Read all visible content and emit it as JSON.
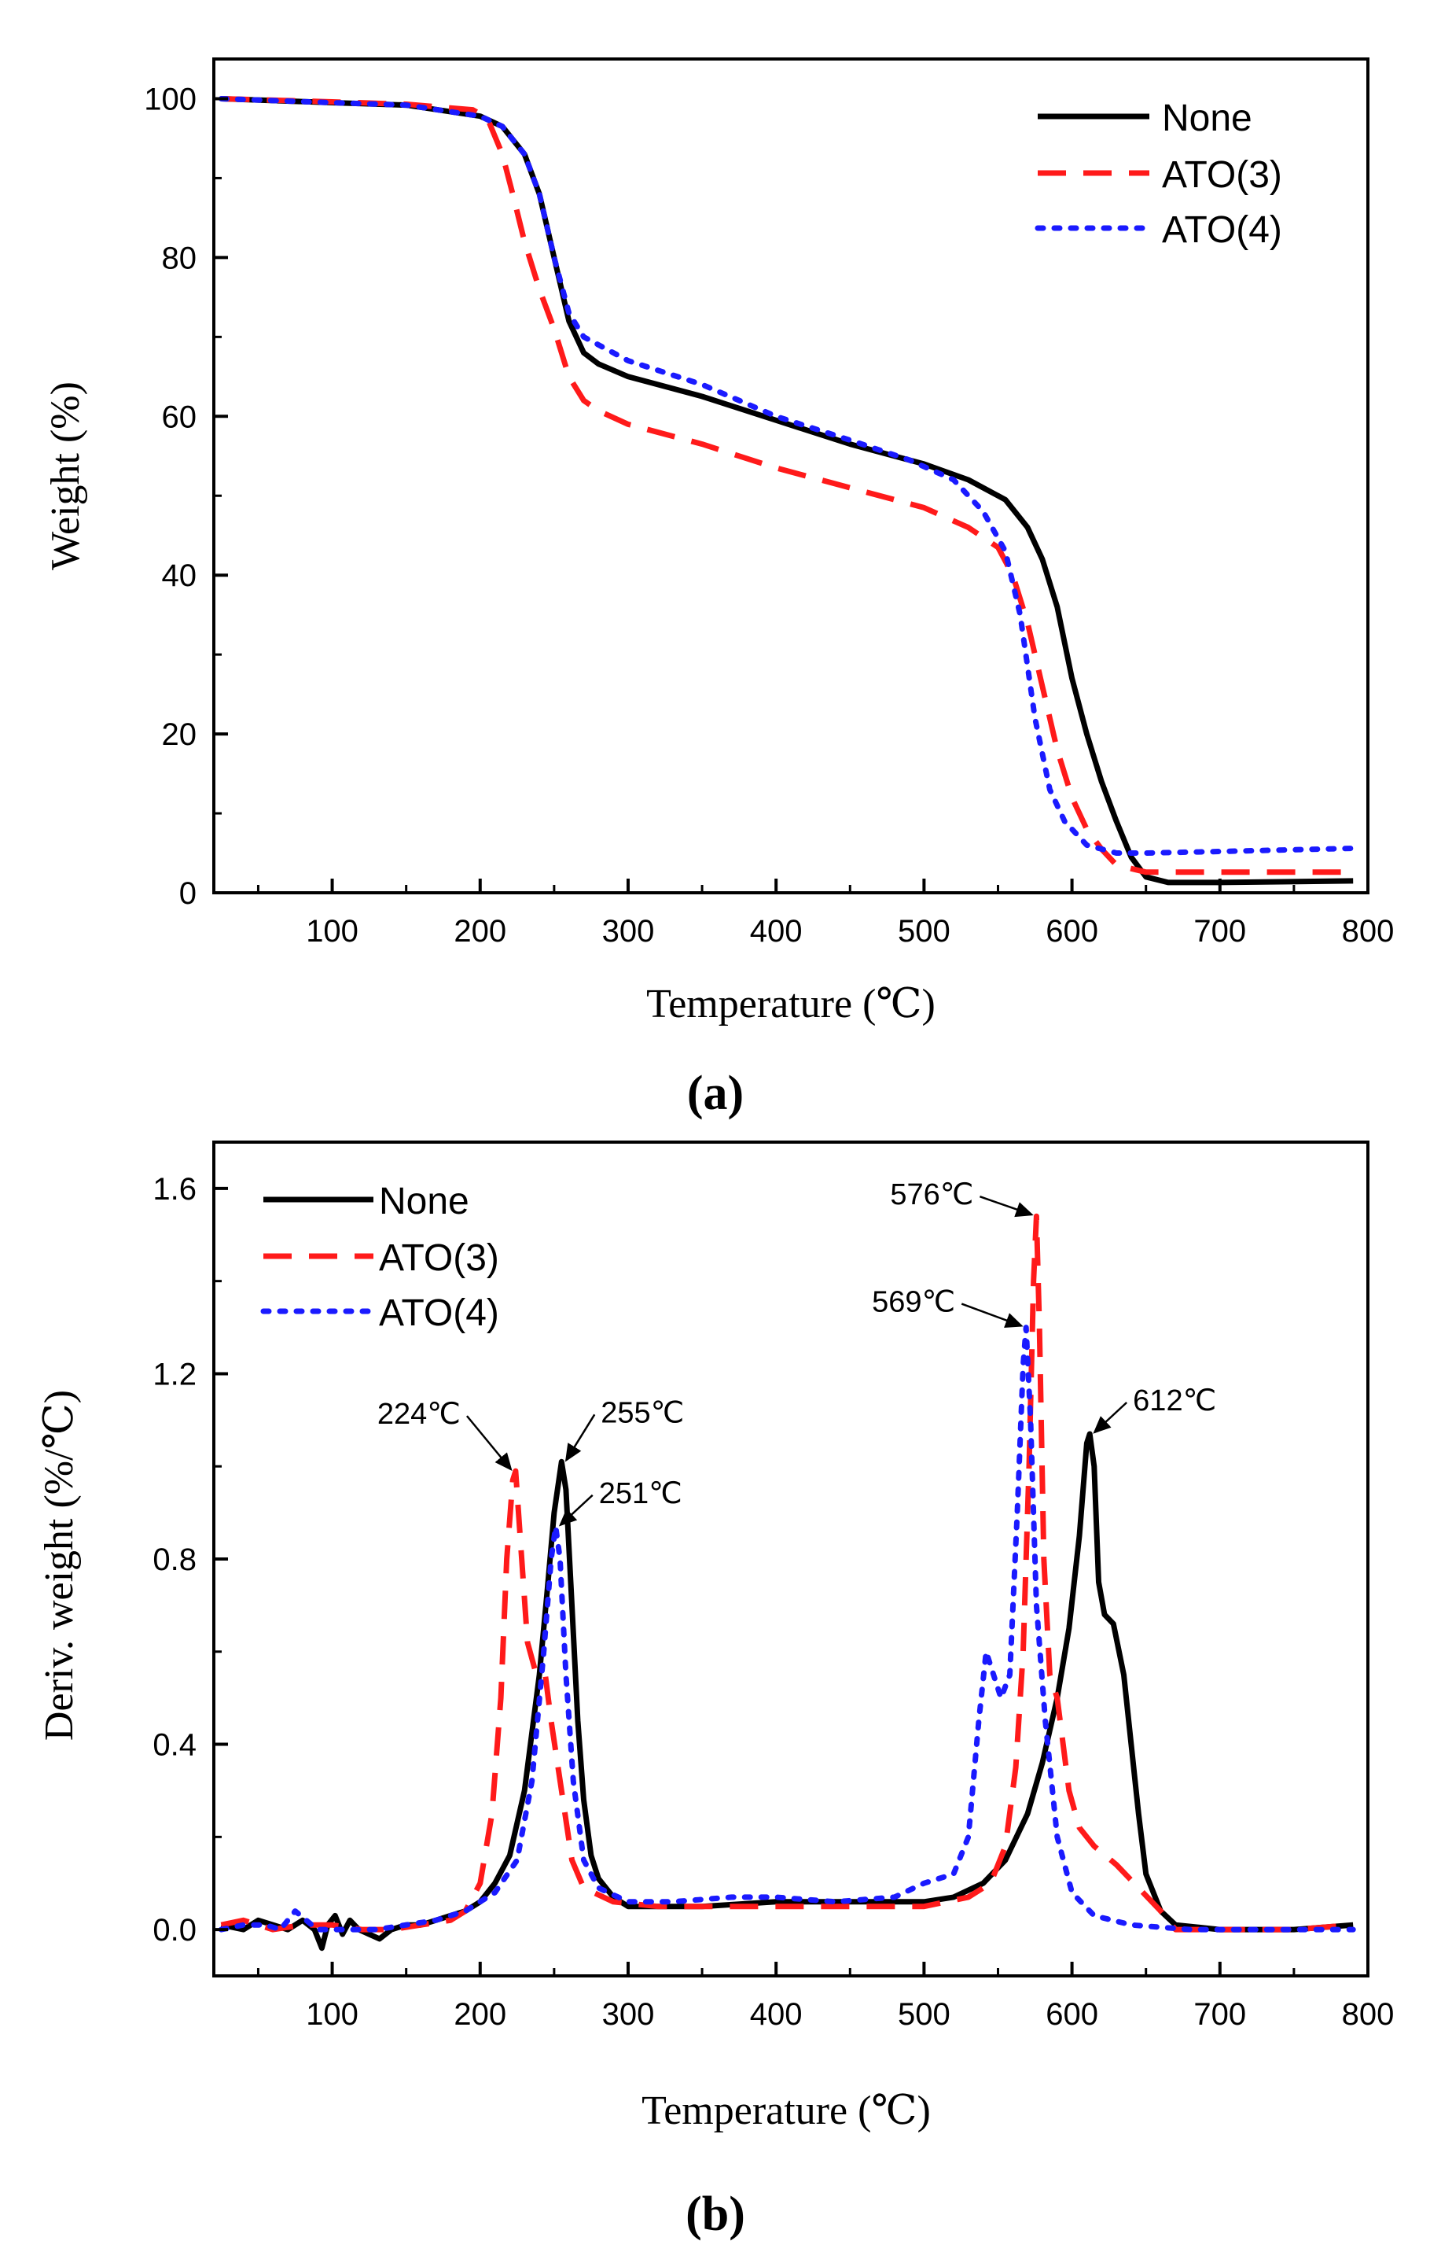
{
  "chart_data": [
    {
      "type": "line",
      "panel_label": "(a)",
      "xlabel": "Temperature (℃)",
      "ylabel": "Weight (%)",
      "xlim": [
        20,
        800
      ],
      "ylim": [
        0,
        105
      ],
      "x_ticks": [
        100,
        200,
        300,
        400,
        500,
        600,
        700,
        800
      ],
      "y_ticks": [
        0,
        20,
        40,
        60,
        80,
        100
      ],
      "legend_position": "top-right",
      "grid": false,
      "series": [
        {
          "name": "None",
          "style": "solid",
          "color": "#000000",
          "points": [
            [
              25,
              100
            ],
            [
              100,
              99.5
            ],
            [
              150,
              99.2
            ],
            [
              200,
              97.8
            ],
            [
              215,
              96.5
            ],
            [
              230,
              93
            ],
            [
              240,
              88
            ],
            [
              250,
              80
            ],
            [
              260,
              72
            ],
            [
              270,
              68
            ],
            [
              280,
              66.6
            ],
            [
              300,
              65
            ],
            [
              350,
              62.5
            ],
            [
              400,
              59.5
            ],
            [
              450,
              56.5
            ],
            [
              500,
              54
            ],
            [
              530,
              52
            ],
            [
              555,
              49.5
            ],
            [
              570,
              46
            ],
            [
              580,
              42
            ],
            [
              590,
              36
            ],
            [
              600,
              27
            ],
            [
              610,
              20
            ],
            [
              620,
              14
            ],
            [
              630,
              9
            ],
            [
              640,
              4.5
            ],
            [
              650,
              2
            ],
            [
              665,
              1.3
            ],
            [
              700,
              1.3
            ],
            [
              790,
              1.5
            ]
          ]
        },
        {
          "name": "ATO(3)",
          "style": "dashed",
          "color": "#ff1a1a",
          "points": [
            [
              25,
              100
            ],
            [
              100,
              99.6
            ],
            [
              150,
              99.3
            ],
            [
              195,
              98.6
            ],
            [
              205,
              97.5
            ],
            [
              215,
              93
            ],
            [
              222,
              88
            ],
            [
              230,
              82
            ],
            [
              240,
              76
            ],
            [
              250,
              71
            ],
            [
              260,
              65
            ],
            [
              270,
              62
            ],
            [
              280,
              60.7
            ],
            [
              300,
              59
            ],
            [
              350,
              56.5
            ],
            [
              400,
              53.5
            ],
            [
              450,
              51
            ],
            [
              500,
              48.5
            ],
            [
              530,
              46
            ],
            [
              550,
              43.5
            ],
            [
              560,
              40
            ],
            [
              570,
              34
            ],
            [
              580,
              26
            ],
            [
              590,
              18
            ],
            [
              600,
              12
            ],
            [
              610,
              8
            ],
            [
              620,
              5.5
            ],
            [
              630,
              3.5
            ],
            [
              650,
              2.6
            ],
            [
              700,
              2.6
            ],
            [
              790,
              2.6
            ]
          ]
        },
        {
          "name": "ATO(4)",
          "style": "dotted",
          "color": "#1a1aff",
          "points": [
            [
              25,
              100
            ],
            [
              100,
              99.5
            ],
            [
              150,
              99.2
            ],
            [
              200,
              97.8
            ],
            [
              215,
              96.5
            ],
            [
              230,
              93
            ],
            [
              240,
              88
            ],
            [
              250,
              80
            ],
            [
              260,
              73
            ],
            [
              270,
              70
            ],
            [
              280,
              69
            ],
            [
              300,
              67
            ],
            [
              350,
              64
            ],
            [
              400,
              60
            ],
            [
              450,
              57
            ],
            [
              490,
              54.5
            ],
            [
              520,
              52
            ],
            [
              540,
              48
            ],
            [
              555,
              43
            ],
            [
              565,
              35
            ],
            [
              575,
              22
            ],
            [
              585,
              13
            ],
            [
              595,
              9
            ],
            [
              610,
              6
            ],
            [
              630,
              5
            ],
            [
              650,
              5
            ],
            [
              700,
              5.2
            ],
            [
              790,
              5.6
            ]
          ]
        }
      ]
    },
    {
      "type": "line",
      "panel_label": "(b)",
      "xlabel": "Temperature (℃)",
      "ylabel": "Deriv. weight (%/℃)",
      "xlim": [
        20,
        800
      ],
      "ylim": [
        -0.1,
        1.7
      ],
      "x_ticks": [
        100,
        200,
        300,
        400,
        500,
        600,
        700,
        800
      ],
      "y_ticks": [
        0.0,
        0.4,
        0.8,
        1.2,
        1.6
      ],
      "y_tick_labels": [
        "0.0",
        "0.4",
        "0.8",
        "1.2",
        "1.6"
      ],
      "legend_position": "top-left",
      "grid": false,
      "annotations": [
        {
          "text": "224℃",
          "x": 224,
          "y": 0.99,
          "series": "ATO(3)"
        },
        {
          "text": "255℃",
          "x": 255,
          "y": 1.01,
          "series": "None"
        },
        {
          "text": "251℃",
          "x": 251,
          "y": 0.87,
          "series": "ATO(4)"
        },
        {
          "text": "576℃",
          "x": 576,
          "y": 1.54,
          "series": "ATO(3)"
        },
        {
          "text": "569℃",
          "x": 569,
          "y": 1.3,
          "series": "ATO(4)"
        },
        {
          "text": "612℃",
          "x": 612,
          "y": 1.07,
          "series": "None"
        }
      ],
      "series": [
        {
          "name": "None",
          "style": "solid",
          "color": "#000000",
          "points": [
            [
              25,
              0.01
            ],
            [
              40,
              0.0
            ],
            [
              50,
              0.02
            ],
            [
              60,
              0.01
            ],
            [
              70,
              0.0
            ],
            [
              80,
              0.02
            ],
            [
              88,
              0.0
            ],
            [
              93,
              -0.04
            ],
            [
              97,
              0.01
            ],
            [
              102,
              0.03
            ],
            [
              107,
              -0.01
            ],
            [
              112,
              0.02
            ],
            [
              118,
              0.0
            ],
            [
              125,
              -0.01
            ],
            [
              132,
              -0.02
            ],
            [
              140,
              0.0
            ],
            [
              150,
              0.01
            ],
            [
              160,
              0.01
            ],
            [
              170,
              0.02
            ],
            [
              180,
              0.03
            ],
            [
              190,
              0.04
            ],
            [
              200,
              0.06
            ],
            [
              210,
              0.1
            ],
            [
              220,
              0.16
            ],
            [
              230,
              0.3
            ],
            [
              240,
              0.55
            ],
            [
              245,
              0.72
            ],
            [
              250,
              0.9
            ],
            [
              255,
              1.01
            ],
            [
              258,
              0.95
            ],
            [
              262,
              0.7
            ],
            [
              266,
              0.45
            ],
            [
              270,
              0.28
            ],
            [
              275,
              0.16
            ],
            [
              280,
              0.11
            ],
            [
              290,
              0.07
            ],
            [
              300,
              0.05
            ],
            [
              320,
              0.05
            ],
            [
              350,
              0.05
            ],
            [
              400,
              0.06
            ],
            [
              450,
              0.06
            ],
            [
              500,
              0.06
            ],
            [
              520,
              0.07
            ],
            [
              540,
              0.1
            ],
            [
              555,
              0.15
            ],
            [
              570,
              0.25
            ],
            [
              580,
              0.36
            ],
            [
              590,
              0.5
            ],
            [
              598,
              0.65
            ],
            [
              605,
              0.85
            ],
            [
              610,
              1.05
            ],
            [
              612,
              1.07
            ],
            [
              615,
              1.0
            ],
            [
              618,
              0.75
            ],
            [
              622,
              0.68
            ],
            [
              628,
              0.66
            ],
            [
              635,
              0.55
            ],
            [
              640,
              0.4
            ],
            [
              645,
              0.25
            ],
            [
              650,
              0.12
            ],
            [
              660,
              0.04
            ],
            [
              670,
              0.01
            ],
            [
              700,
              0.0
            ],
            [
              750,
              0.0
            ],
            [
              790,
              0.01
            ]
          ]
        },
        {
          "name": "ATO(3)",
          "style": "dashed",
          "color": "#ff1a1a",
          "points": [
            [
              25,
              0.01
            ],
            [
              40,
              0.02
            ],
            [
              60,
              0.0
            ],
            [
              80,
              0.01
            ],
            [
              100,
              0.01
            ],
            [
              120,
              0.0
            ],
            [
              140,
              0.0
            ],
            [
              160,
              0.01
            ],
            [
              180,
              0.02
            ],
            [
              190,
              0.04
            ],
            [
              200,
              0.1
            ],
            [
              208,
              0.25
            ],
            [
              214,
              0.5
            ],
            [
              218,
              0.8
            ],
            [
              222,
              0.97
            ],
            [
              224,
              0.99
            ],
            [
              227,
              0.85
            ],
            [
              232,
              0.62
            ],
            [
              238,
              0.55
            ],
            [
              244,
              0.55
            ],
            [
              248,
              0.45
            ],
            [
              255,
              0.3
            ],
            [
              262,
              0.15
            ],
            [
              270,
              0.09
            ],
            [
              290,
              0.06
            ],
            [
              320,
              0.05
            ],
            [
              360,
              0.05
            ],
            [
              400,
              0.05
            ],
            [
              450,
              0.05
            ],
            [
              500,
              0.05
            ],
            [
              530,
              0.07
            ],
            [
              545,
              0.1
            ],
            [
              555,
              0.18
            ],
            [
              562,
              0.35
            ],
            [
              567,
              0.6
            ],
            [
              571,
              1.0
            ],
            [
              574,
              1.4
            ],
            [
              576,
              1.54
            ],
            [
              578,
              1.3
            ],
            [
              581,
              0.8
            ],
            [
              585,
              0.55
            ],
            [
              590,
              0.5
            ],
            [
              598,
              0.3
            ],
            [
              605,
              0.22
            ],
            [
              615,
              0.18
            ],
            [
              630,
              0.14
            ],
            [
              645,
              0.09
            ],
            [
              660,
              0.04
            ],
            [
              670,
              0.0
            ],
            [
              700,
              0.0
            ],
            [
              750,
              0.0
            ],
            [
              790,
              0.01
            ]
          ]
        },
        {
          "name": "ATO(4)",
          "style": "dotted",
          "color": "#1a1aff",
          "points": [
            [
              25,
              0.0
            ],
            [
              40,
              0.01
            ],
            [
              55,
              0.01
            ],
            [
              65,
              0.0
            ],
            [
              75,
              0.04
            ],
            [
              90,
              0.0
            ],
            [
              110,
              0.0
            ],
            [
              130,
              0.0
            ],
            [
              150,
              0.01
            ],
            [
              170,
              0.02
            ],
            [
              190,
              0.04
            ],
            [
              210,
              0.08
            ],
            [
              225,
              0.15
            ],
            [
              235,
              0.32
            ],
            [
              243,
              0.6
            ],
            [
              248,
              0.8
            ],
            [
              251,
              0.87
            ],
            [
              254,
              0.8
            ],
            [
              258,
              0.55
            ],
            [
              263,
              0.32
            ],
            [
              270,
              0.15
            ],
            [
              280,
              0.09
            ],
            [
              300,
              0.06
            ],
            [
              330,
              0.06
            ],
            [
              370,
              0.07
            ],
            [
              400,
              0.07
            ],
            [
              440,
              0.06
            ],
            [
              480,
              0.07
            ],
            [
              500,
              0.1
            ],
            [
              520,
              0.12
            ],
            [
              530,
              0.2
            ],
            [
              537,
              0.45
            ],
            [
              542,
              0.6
            ],
            [
              547,
              0.55
            ],
            [
              552,
              0.5
            ],
            [
              558,
              0.55
            ],
            [
              563,
              0.9
            ],
            [
              567,
              1.22
            ],
            [
              569,
              1.3
            ],
            [
              572,
              1.1
            ],
            [
              576,
              0.7
            ],
            [
              582,
              0.45
            ],
            [
              590,
              0.2
            ],
            [
              600,
              0.08
            ],
            [
              615,
              0.03
            ],
            [
              640,
              0.01
            ],
            [
              680,
              0.0
            ],
            [
              720,
              0.0
            ],
            [
              790,
              0.0
            ]
          ]
        }
      ]
    }
  ]
}
